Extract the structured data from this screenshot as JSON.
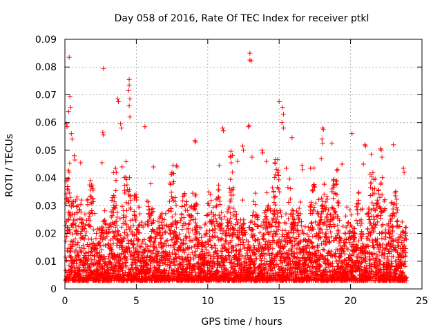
{
  "chart_data": {
    "type": "scatter",
    "title": "Day 058 of 2016, Rate Of TEC Index for receiver ptkl",
    "xlabel": "GPS time / hours",
    "ylabel": "ROTI / TECUs",
    "xlim": [
      0,
      25
    ],
    "ylim": [
      0,
      0.09
    ],
    "grid": true,
    "x_ticks": [
      0,
      5,
      10,
      15,
      20,
      25
    ],
    "x_tick_labels": [
      "0",
      "5",
      "10",
      "15",
      "20",
      "25"
    ],
    "y_ticks": [
      0,
      0.01,
      0.02,
      0.03,
      0.04,
      0.05,
      0.06,
      0.07,
      0.08,
      0.09
    ],
    "y_tick_labels": [
      "0",
      "0.01",
      "0.02",
      "0.03",
      "0.04",
      "0.05",
      "0.06",
      "0.07",
      "0.08",
      "0.09"
    ],
    "marker": "+",
    "color": "#ff0000",
    "series": [
      {
        "name": "ROTI",
        "points": [
          [
            0.3,
            0.0835
          ],
          [
            2.7,
            0.0795
          ],
          [
            12.95,
            0.085
          ],
          [
            12.95,
            0.0825
          ],
          [
            13.05,
            0.0822
          ],
          [
            4.5,
            0.0755
          ],
          [
            4.5,
            0.0735
          ],
          [
            4.45,
            0.0715
          ],
          [
            4.55,
            0.0685
          ],
          [
            3.7,
            0.0685
          ],
          [
            3.75,
            0.0675
          ],
          [
            0.35,
            0.0695
          ],
          [
            0.4,
            0.0655
          ],
          [
            0.25,
            0.064
          ],
          [
            15.0,
            0.0675
          ],
          [
            15.25,
            0.0655
          ],
          [
            15.3,
            0.063
          ],
          [
            15.2,
            0.06
          ],
          [
            15.3,
            0.058
          ],
          [
            0.1,
            0.0595
          ],
          [
            0.15,
            0.0585
          ],
          [
            5.6,
            0.0585
          ],
          [
            3.9,
            0.0595
          ],
          [
            3.95,
            0.058
          ],
          [
            12.85,
            0.0585
          ],
          [
            12.9,
            0.059
          ],
          [
            18.05,
            0.058
          ],
          [
            18.1,
            0.0575
          ],
          [
            20.1,
            0.056
          ],
          [
            11.05,
            0.058
          ],
          [
            11.1,
            0.057
          ],
          [
            9.1,
            0.0535
          ],
          [
            9.15,
            0.053
          ],
          [
            0.45,
            0.056
          ],
          [
            0.5,
            0.054
          ],
          [
            2.65,
            0.0565
          ],
          [
            2.7,
            0.0555
          ],
          [
            4.55,
            0.062
          ],
          [
            4.5,
            0.066
          ],
          [
            15.9,
            0.0545
          ],
          [
            18.0,
            0.054
          ],
          [
            18.05,
            0.0525
          ],
          [
            18.7,
            0.0525
          ],
          [
            21.0,
            0.052
          ],
          [
            21.05,
            0.0515
          ],
          [
            22.1,
            0.0505
          ],
          [
            22.15,
            0.05
          ],
          [
            23.0,
            0.052
          ],
          [
            12.45,
            0.0515
          ],
          [
            12.5,
            0.05
          ],
          [
            13.8,
            0.05
          ],
          [
            13.85,
            0.049
          ],
          [
            17.95,
            0.047
          ],
          [
            21.45,
            0.0485
          ],
          [
            22.2,
            0.0475
          ],
          [
            7.8,
            0.0445
          ],
          [
            7.85,
            0.044
          ],
          [
            6.2,
            0.044
          ],
          [
            10.8,
            0.0445
          ],
          [
            14.1,
            0.046
          ],
          [
            16.6,
            0.0445
          ],
          [
            16.65,
            0.043
          ],
          [
            19.4,
            0.045
          ],
          [
            0.65,
            0.048
          ],
          [
            0.7,
            0.0465
          ],
          [
            1.1,
            0.0455
          ],
          [
            2.6,
            0.0455
          ],
          [
            3.55,
            0.0435
          ],
          [
            3.6,
            0.042
          ],
          [
            4.0,
            0.044
          ],
          [
            11.6,
            0.0475
          ],
          [
            11.65,
            0.0455
          ],
          [
            12.1,
            0.046
          ],
          [
            13.1,
            0.0475
          ],
          [
            14.7,
            0.0455
          ],
          [
            15.5,
            0.0435
          ],
          [
            17.2,
            0.0435
          ],
          [
            19.1,
            0.043
          ],
          [
            20.9,
            0.045
          ],
          [
            23.7,
            0.0435
          ],
          [
            23.75,
            0.042
          ]
        ]
      }
    ]
  }
}
